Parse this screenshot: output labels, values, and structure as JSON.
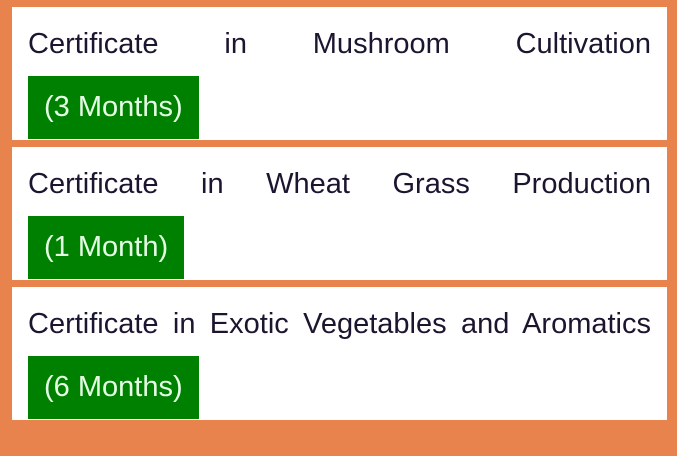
{
  "courses": [
    {
      "title": "Certificate in Mushroom Cultivation",
      "duration": "(3 Months)"
    },
    {
      "title": "Certificate in Wheat Grass Production",
      "duration": "(1 Month)"
    },
    {
      "title": "Certificate in Exotic Vegetables and Aromatics",
      "duration": "(6 Months)"
    }
  ],
  "colors": {
    "background": "#e8834e",
    "badge": "#008000",
    "card": "#ffffff"
  }
}
